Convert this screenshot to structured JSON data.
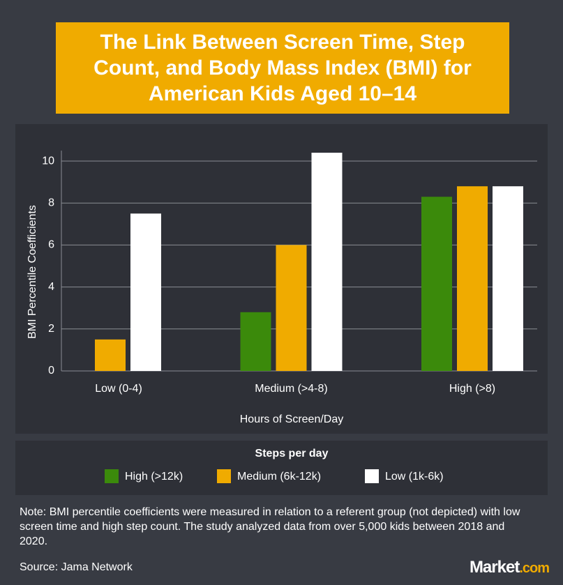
{
  "chart_data": {
    "type": "bar",
    "title": "The Link Between Screen Time, Step Count, and Body Mass Index (BMI) for American Kids Aged 10–14",
    "categories": [
      "Low (0-4)",
      "Medium (>4-8)",
      "High (>8)"
    ],
    "series": [
      {
        "name": "High (>12k)",
        "color": "#3b8a0b",
        "values": [
          null,
          2.8,
          8.3
        ]
      },
      {
        "name": "Medium (6k-12k)",
        "color": "#f0ab00",
        "values": [
          1.5,
          6.0,
          8.8
        ]
      },
      {
        "name": "Low (1k-6k)",
        "color": "#ffffff",
        "values": [
          7.5,
          10.4,
          8.8
        ]
      }
    ],
    "ylim": [
      0,
      10.5
    ],
    "yticks": [
      0,
      2,
      4,
      6,
      8,
      10
    ],
    "grid": true,
    "y_label": "BMI Percentile Coefficients",
    "x_label": "Hours of Screen/Day",
    "legend_title": "Steps per day",
    "note": "Note: BMI percentile coefficients were measured in relation to a referent group (not depicted) with low screen time and high step count. The study analyzed data from over 5,000 kids between 2018 and 2020.",
    "source": "Source: Jama Network",
    "logo": [
      "Market",
      ".com"
    ]
  }
}
